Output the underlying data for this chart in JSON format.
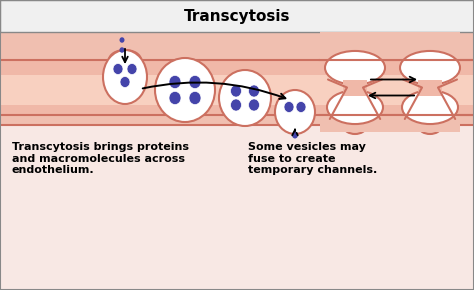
{
  "title": "Transcytosis",
  "title_fontsize": 11,
  "title_fontweight": "bold",
  "bg_outer": "#f5d5cc",
  "bg_inner": "#f0b8a8",
  "bg_below": "#f8e8e4",
  "bg_title": "#f0f0f0",
  "border_color": "#cc7060",
  "dot_color": "#4444aa",
  "vesicle_edge": "#cc7060",
  "text1": "Transcytosis brings proteins\nand macromolecules across\nendothelium.",
  "text2": "Some vesicles may\nfuse to create\ntemporary channels.",
  "text_fontsize": 8.0,
  "text_fontweight": "bold",
  "fig_w": 4.74,
  "fig_h": 2.9,
  "dpi": 100
}
